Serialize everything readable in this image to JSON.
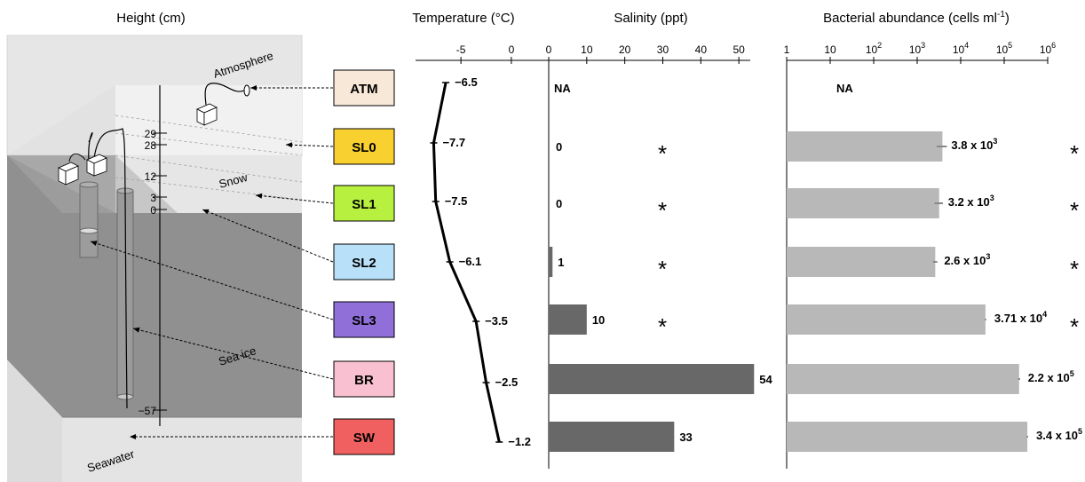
{
  "headers": {
    "height": "Height (cm)",
    "temperature": "Temperature (°C)",
    "salinity": "Salinity (ppt)",
    "bacteria_pre": "Bacterial abundance (cells ml",
    "bacteria_sup": "-1",
    "bacteria_post": ")"
  },
  "diagram": {
    "labels": {
      "atmosphere": "Atmosphere",
      "snow": "Snow",
      "sea_ice": "Sea ice",
      "seawater": "Seawater"
    },
    "height_ticks": [
      "29",
      "28",
      "12",
      "3",
      "0",
      "−57"
    ]
  },
  "layers": [
    {
      "id": "ATM",
      "color": "#f8e8d8"
    },
    {
      "id": "SL0",
      "color": "#f8d030"
    },
    {
      "id": "SL1",
      "color": "#b8f040"
    },
    {
      "id": "SL2",
      "color": "#b8e0f8"
    },
    {
      "id": "SL3",
      "color": "#9070d8"
    },
    {
      "id": "BR",
      "color": "#f8c0d0"
    },
    {
      "id": "SW",
      "color": "#f06060"
    }
  ],
  "chart_data": [
    {
      "type": "line",
      "title": "Temperature (°C)",
      "categories": [
        "ATM",
        "SL0",
        "SL1",
        "SL2",
        "SL3",
        "BR",
        "SW"
      ],
      "values": [
        -6.5,
        -7.7,
        -7.5,
        -6.1,
        -3.5,
        -2.5,
        -1.2
      ],
      "labels": [
        "−6.5",
        "−7.7",
        "−7.5",
        "−6.1",
        "−3.5",
        "−2.5",
        "−1.2"
      ],
      "xlim": [
        -9.5,
        3
      ],
      "ticks": [
        {
          "v": -5,
          "label": "-5"
        },
        {
          "v": 0,
          "label": "0"
        }
      ]
    },
    {
      "type": "bar",
      "title": "Salinity (ppt)",
      "categories": [
        "ATM",
        "SL0",
        "SL1",
        "SL2",
        "SL3",
        "BR",
        "SW"
      ],
      "values": [
        null,
        0,
        0,
        1,
        10,
        54,
        33
      ],
      "labels": [
        "NA",
        "0",
        "0",
        "1",
        "10",
        "54",
        "33"
      ],
      "significant": [
        false,
        true,
        true,
        true,
        true,
        false,
        false
      ],
      "significance_mark": "*",
      "xlim": [
        0,
        53
      ],
      "ticks": [
        "0",
        "10",
        "20",
        "30",
        "40",
        "50"
      ],
      "color": "#686868"
    },
    {
      "type": "bar",
      "title": "Bacterial abundance (cells ml-1)",
      "log_scale": true,
      "categories": [
        "ATM",
        "SL0",
        "SL1",
        "SL2",
        "SL3",
        "BR",
        "SW"
      ],
      "values": [
        null,
        3800,
        3200,
        2600,
        37100,
        220000,
        340000
      ],
      "errors": [
        null,
        1000,
        700,
        300,
        1500,
        12000,
        15000
      ],
      "labels": [
        {
          "pre": "NA",
          "exp": ""
        },
        {
          "pre": "3.8 x 10",
          "exp": "3"
        },
        {
          "pre": "3.2 x 10",
          "exp": "3"
        },
        {
          "pre": "2.6 x 10",
          "exp": "3"
        },
        {
          "pre": "3.71 x 10",
          "exp": "4"
        },
        {
          "pre": "2.2 x 10",
          "exp": "5"
        },
        {
          "pre": "3.4 x 10",
          "exp": "5"
        }
      ],
      "significant": [
        false,
        true,
        true,
        true,
        true,
        false,
        false
      ],
      "significance_mark": "*",
      "xlim": [
        1,
        1000000
      ],
      "ticks": [
        {
          "pre": "1",
          "exp": ""
        },
        {
          "pre": "10",
          "exp": ""
        },
        {
          "pre": "10",
          "exp": "2"
        },
        {
          "pre": "10",
          "exp": "3"
        },
        {
          "pre": "10",
          "exp": "4"
        },
        {
          "pre": "10",
          "exp": "5"
        },
        {
          "pre": "10",
          "exp": "6"
        }
      ],
      "color": "#b8b8b8",
      "error_color": "#888888"
    }
  ]
}
